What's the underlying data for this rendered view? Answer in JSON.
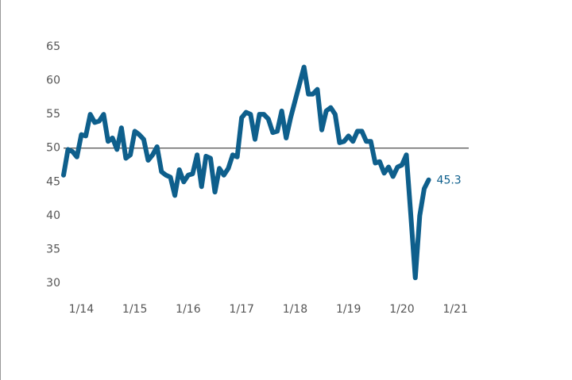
{
  "chart_data": {
    "type": "line",
    "x": [
      2013.667,
      2013.75,
      2013.833,
      2013.917,
      2014.0,
      2014.083,
      2014.167,
      2014.25,
      2014.333,
      2014.417,
      2014.5,
      2014.583,
      2014.667,
      2014.75,
      2014.833,
      2014.917,
      2015.0,
      2015.083,
      2015.167,
      2015.25,
      2015.333,
      2015.417,
      2015.5,
      2015.583,
      2015.667,
      2015.75,
      2015.833,
      2015.917,
      2016.0,
      2016.083,
      2016.167,
      2016.25,
      2016.333,
      2016.417,
      2016.5,
      2016.583,
      2016.667,
      2016.75,
      2016.833,
      2016.917,
      2017.0,
      2017.083,
      2017.167,
      2017.25,
      2017.333,
      2017.417,
      2017.5,
      2017.583,
      2017.667,
      2017.75,
      2017.833,
      2017.917,
      2018.0,
      2018.083,
      2018.167,
      2018.25,
      2018.333,
      2018.417,
      2018.5,
      2018.583,
      2018.667,
      2018.75,
      2018.833,
      2018.917,
      2019.0,
      2019.083,
      2019.167,
      2019.25,
      2019.333,
      2019.417,
      2019.5,
      2019.583,
      2019.667,
      2019.75,
      2019.833,
      2019.917,
      2020.0,
      2020.083,
      2020.167,
      2020.25,
      2020.333,
      2020.417,
      2020.5
    ],
    "values": [
      46,
      49.8,
      49.5,
      48.7,
      52,
      51.8,
      55,
      53.8,
      54,
      55,
      51,
      51.5,
      49.8,
      53,
      48.5,
      49,
      52.5,
      52,
      51.3,
      48.2,
      49,
      50.2,
      46.5,
      46,
      45.7,
      43,
      46.8,
      45,
      46,
      46.2,
      49,
      44.3,
      48.8,
      48.5,
      43.5,
      47,
      46,
      47,
      49,
      48.7,
      54.5,
      55.3,
      55,
      51.3,
      55,
      55,
      54.3,
      52.3,
      52.5,
      55.5,
      51.5,
      54.5,
      57,
      59.5,
      62,
      58,
      58,
      58.7,
      52.7,
      55.5,
      56,
      55,
      50.8,
      51,
      51.8,
      51,
      52.5,
      52.5,
      51,
      51,
      47.8,
      48,
      46.3,
      47.2,
      45.8,
      47.2,
      47.5,
      49,
      40,
      30.8,
      40,
      44,
      45.3
    ],
    "color": "#0e5f8c",
    "reference_line": 50,
    "xlim": [
      2013.667,
      2021.25
    ],
    "xticks": [
      {
        "value": 2014,
        "label": "1/14"
      },
      {
        "value": 2015,
        "label": "1/15"
      },
      {
        "value": 2016,
        "label": "1/16"
      },
      {
        "value": 2017,
        "label": "1/17"
      },
      {
        "value": 2018,
        "label": "1/18"
      },
      {
        "value": 2019,
        "label": "1/19"
      },
      {
        "value": 2020,
        "label": "1/20"
      },
      {
        "value": 2021,
        "label": "1/21"
      }
    ],
    "ylim": [
      30,
      65
    ],
    "yticks": [
      30,
      35,
      40,
      45,
      50,
      55,
      60,
      65
    ]
  }
}
